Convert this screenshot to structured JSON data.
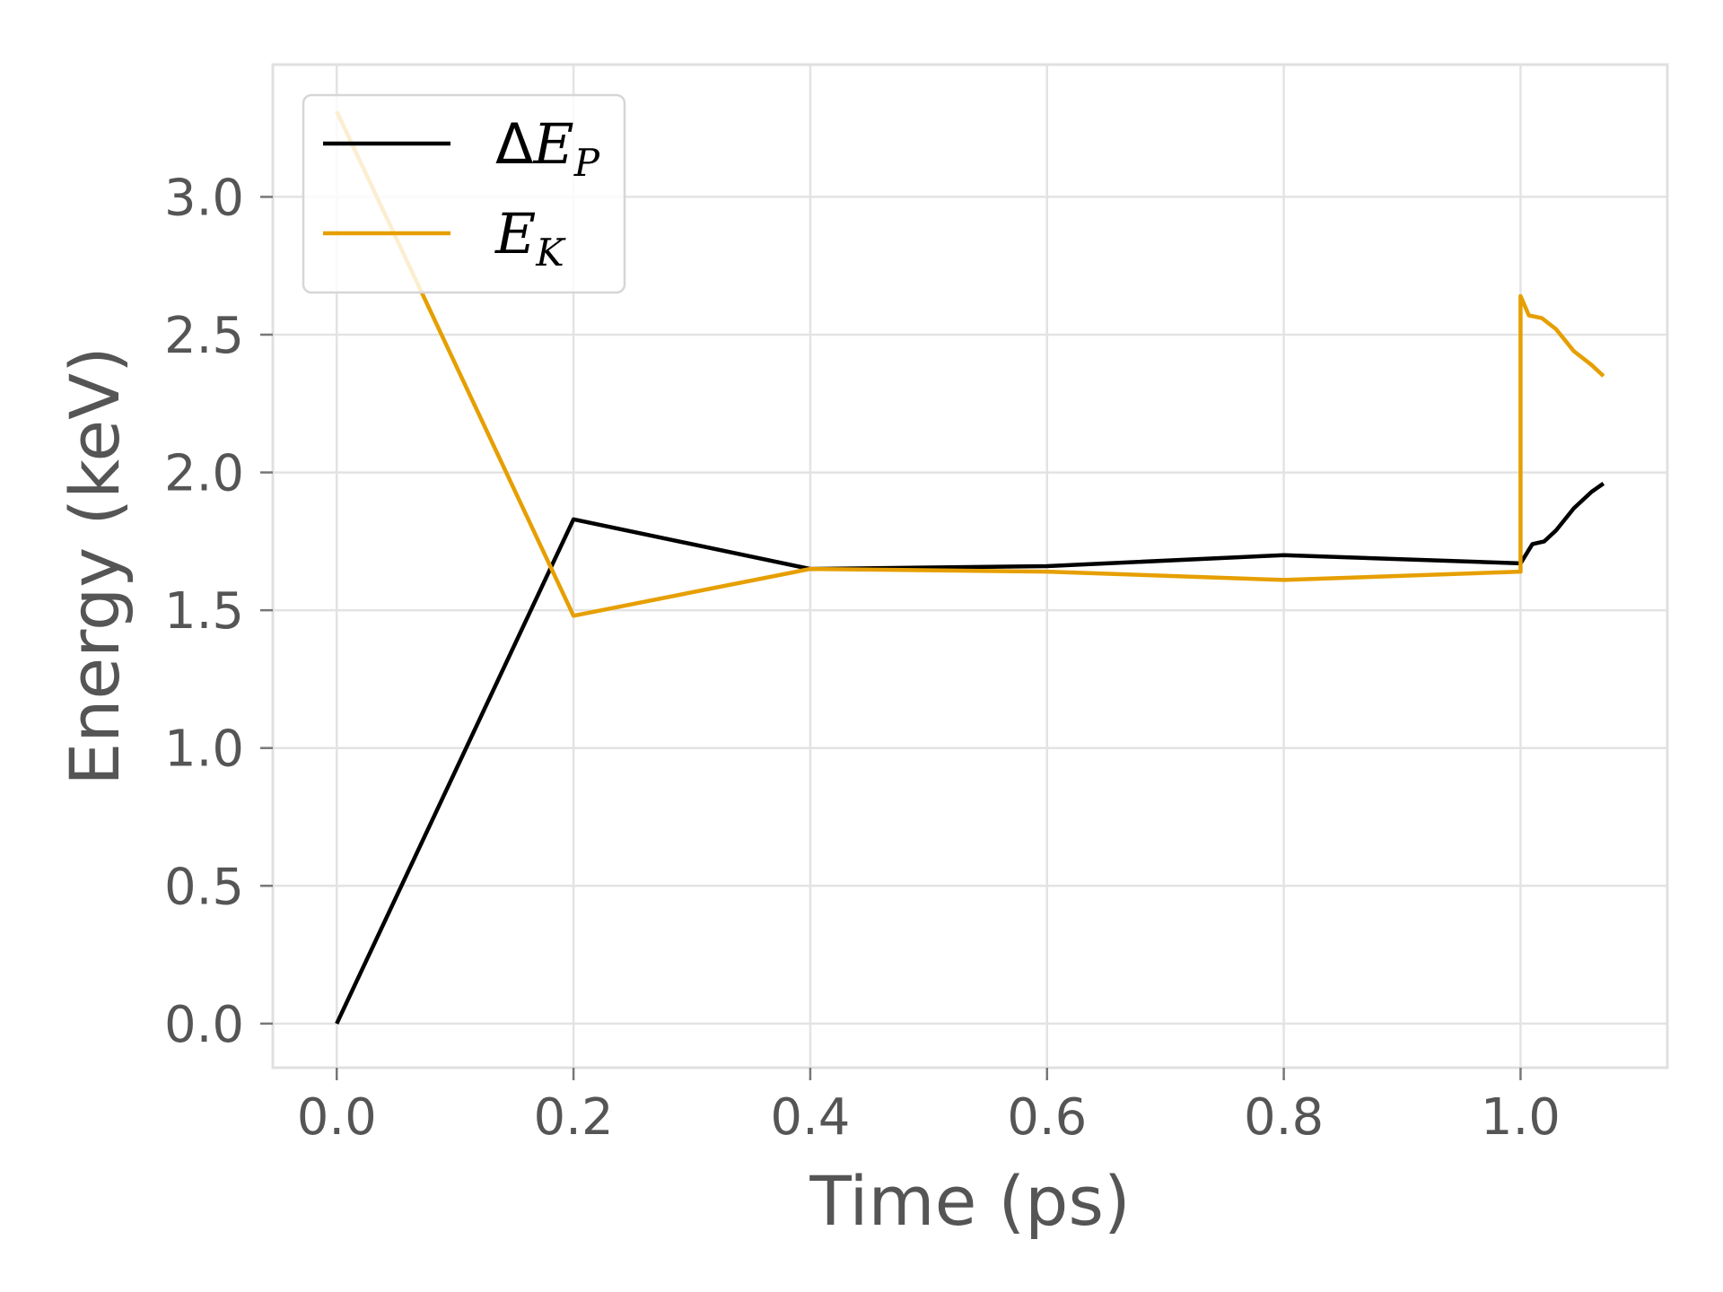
{
  "chart_data": {
    "type": "line",
    "xlabel": "Time (ps)",
    "ylabel": "Energy (keV)",
    "xlim": [
      -0.054,
      1.124
    ],
    "ylim": [
      -0.16,
      3.48
    ],
    "xticks": [
      0.0,
      0.2,
      0.4,
      0.6,
      0.8,
      1.0
    ],
    "xtick_labels": [
      "0.0",
      "0.2",
      "0.4",
      "0.6",
      "0.8",
      "1.0"
    ],
    "yticks": [
      0.0,
      0.5,
      1.0,
      1.5,
      2.0,
      2.5,
      3.0
    ],
    "ytick_labels": [
      "0.0",
      "0.5",
      "1.0",
      "1.5",
      "2.0",
      "2.5",
      "3.0"
    ],
    "grid": true,
    "legend_position": "top-left",
    "series": [
      {
        "name": "ΔE_P",
        "legend_main": "ΔE",
        "legend_sub": "P",
        "color": "#000000",
        "x": [
          0.0,
          0.2,
          0.4,
          0.6,
          0.8,
          1.0,
          1.01,
          1.02,
          1.03,
          1.045,
          1.06,
          1.07
        ],
        "y": [
          0.0,
          1.83,
          1.65,
          1.66,
          1.7,
          1.67,
          1.74,
          1.75,
          1.79,
          1.87,
          1.93,
          1.96
        ]
      },
      {
        "name": "E_K",
        "legend_main": "E",
        "legend_sub": "K",
        "color": "#E69F00",
        "x": [
          0.0,
          0.2,
          0.4,
          0.6,
          0.8,
          1.0,
          1.0,
          1.007,
          1.018,
          1.03,
          1.045,
          1.06,
          1.07
        ],
        "y": [
          3.31,
          1.48,
          1.65,
          1.64,
          1.61,
          1.64,
          2.64,
          2.57,
          2.56,
          2.52,
          2.44,
          2.39,
          2.35
        ]
      }
    ]
  }
}
